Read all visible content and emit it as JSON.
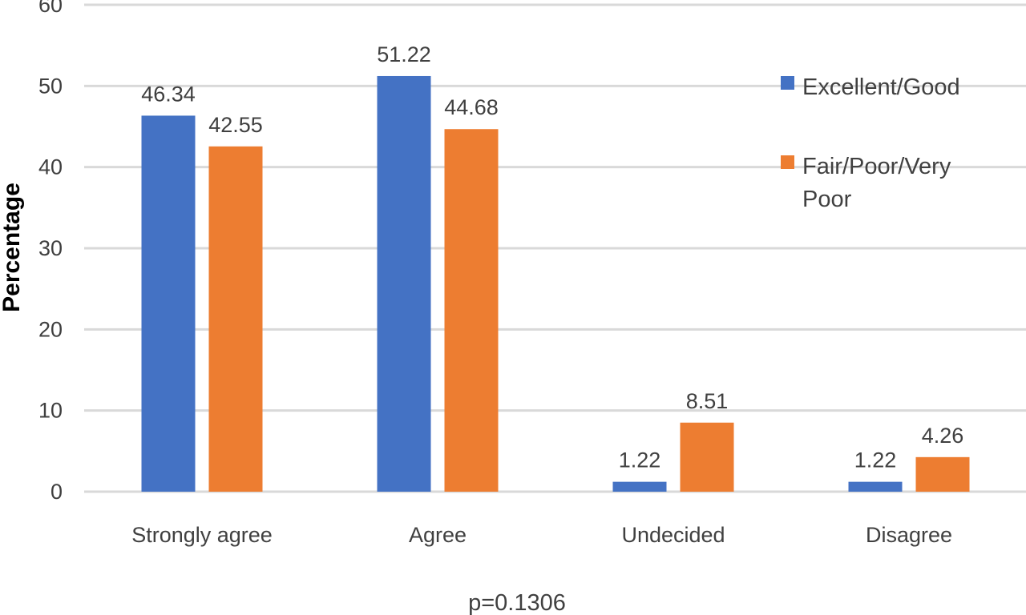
{
  "chart_data": {
    "type": "bar",
    "title": "",
    "xlabel": "",
    "ylabel": "Percentage",
    "ylim": [
      0,
      60
    ],
    "yticks": [
      0,
      10,
      20,
      30,
      40,
      50,
      60
    ],
    "grid": true,
    "legend_position": "top-right",
    "categories": [
      "Strongly agree",
      "Agree",
      "Undecided",
      "Disagree"
    ],
    "series": [
      {
        "name": "Excellent/Good",
        "legend_lines": [
          "Excellent/Good"
        ],
        "color": "#4472c4",
        "values": [
          46.34,
          51.22,
          1.22,
          1.22
        ],
        "labels": [
          "46.34",
          "51.22",
          "1.22",
          "1.22"
        ]
      },
      {
        "name": "Fair/Poor/Very Poor",
        "legend_lines": [
          "Fair/Poor/Very",
          "Poor"
        ],
        "color": "#ed7d31",
        "values": [
          42.55,
          44.68,
          8.51,
          4.26
        ],
        "labels": [
          "42.55",
          "44.68",
          "8.51",
          "4.26"
        ]
      }
    ],
    "note": "p=0.1306"
  }
}
